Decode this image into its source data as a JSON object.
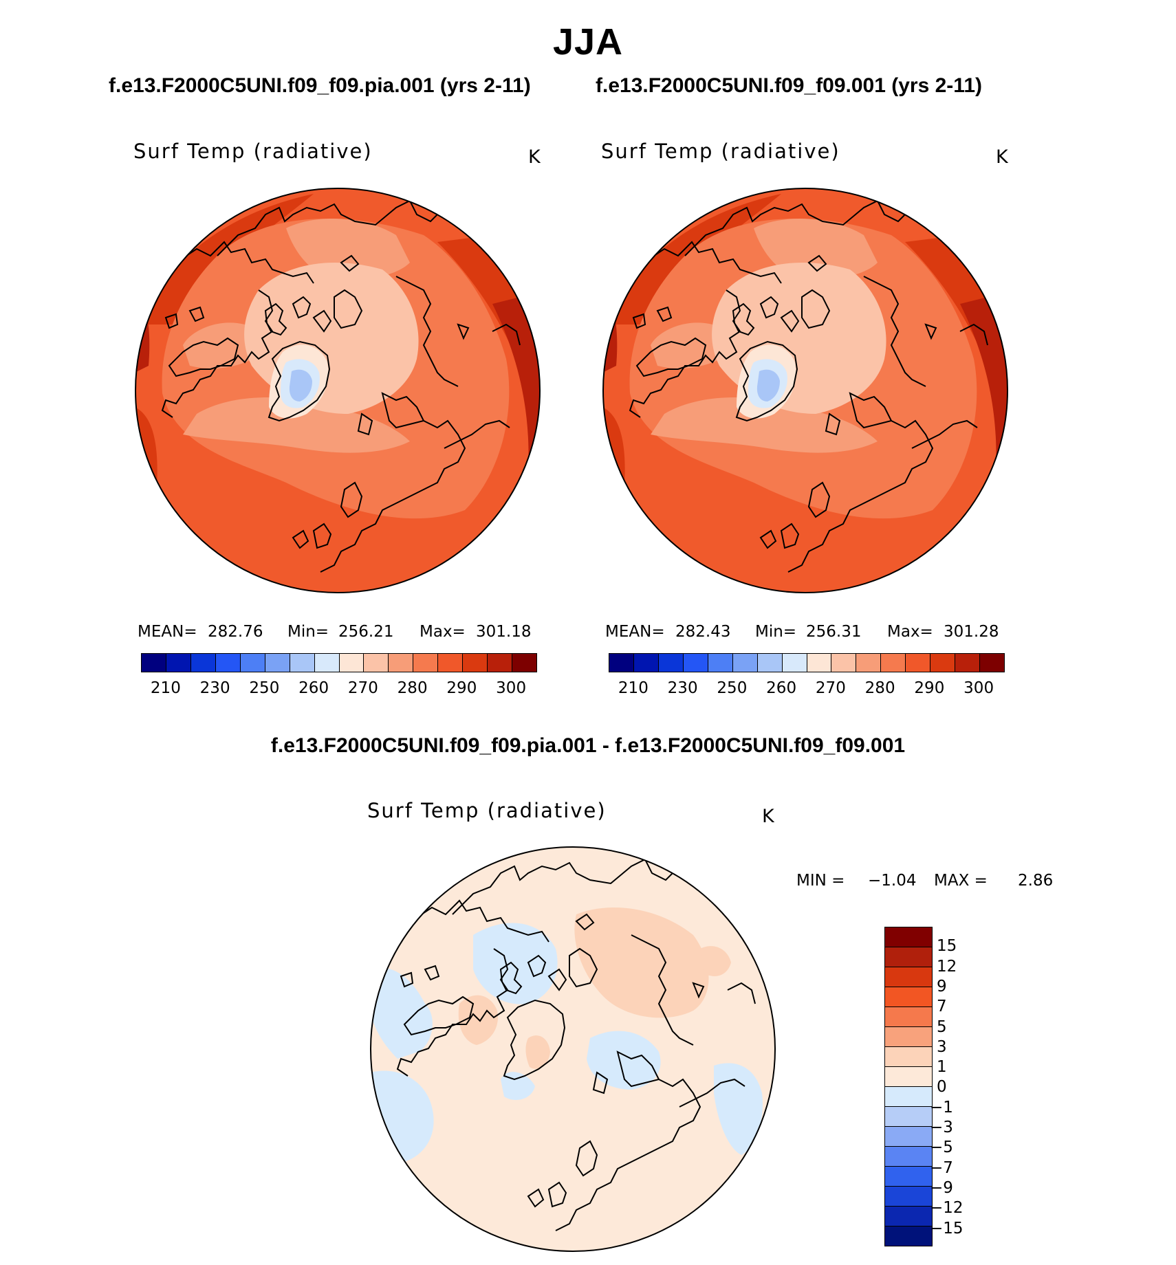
{
  "title": "JJA",
  "panels": [
    {
      "case_title": "f.e13.F2000C5UNI.f09_f09.pia.001 (yrs 2-11)",
      "variable": "Surf Temp (radiative)",
      "units": "K",
      "stats": {
        "mean_label": "MEAN=",
        "mean": "282.76",
        "min_label": "Min=",
        "min": "256.21",
        "max_label": "Max=",
        "max": "301.18"
      }
    },
    {
      "case_title": "f.e13.F2000C5UNI.f09_f09.001 (yrs 2-11)",
      "variable": "Surf Temp (radiative)",
      "units": "K",
      "stats": {
        "mean_label": "MEAN=",
        "mean": "282.43",
        "min_label": "Min=",
        "min": "256.31",
        "max_label": "Max=",
        "max": "301.28"
      }
    }
  ],
  "abs_colorbar": {
    "colors": [
      "#00007f",
      "#0015b0",
      "#0a36d8",
      "#2456f5",
      "#4d7ff5",
      "#7aa2f5",
      "#a9c6f7",
      "#d8e9fb",
      "#fde6d6",
      "#fbc3a8",
      "#f79d78",
      "#f57a4e",
      "#f0582a",
      "#da3a10",
      "#b8200a",
      "#7d0000"
    ],
    "ticks": [
      "210",
      "230",
      "250",
      "260",
      "270",
      "280",
      "290",
      "300"
    ]
  },
  "difference": {
    "title": "f.e13.F2000C5UNI.f09_f09.pia.001 - f.e13.F2000C5UNI.f09_f09.001",
    "variable": "Surf Temp (radiative)",
    "units": "K",
    "min_label": "MIN =",
    "min": "−1.04",
    "max_label": "MAX =",
    "max": "2.86"
  },
  "diff_colorbar": {
    "colors": [
      "#800000",
      "#b0200c",
      "#d8380f",
      "#f25623",
      "#f5794c",
      "#f8a27c",
      "#fcd3b9",
      "#fde9d9",
      "#d6eafc",
      "#b6cdf7",
      "#8aaaf5",
      "#5a84f3",
      "#3062ee",
      "#1a45d8",
      "#0b27b0",
      "#00127a"
    ],
    "ticks": [
      "15",
      "12",
      "9",
      "7",
      "5",
      "3",
      "1",
      "0",
      "−1",
      "−3",
      "−5",
      "−7",
      "−9",
      "−12",
      "−15"
    ]
  },
  "chart_data": [
    {
      "type": "heatmap",
      "title": "f.e13.F2000C5UNI.f09_f09.pia.001 (yrs 2-11)",
      "variable": "Surf Temp (radiative)",
      "units": "K",
      "projection": "north polar stereographic",
      "season": "JJA",
      "mean": 282.76,
      "min": 256.21,
      "max": 301.18,
      "levels": [
        210,
        220,
        230,
        240,
        250,
        255,
        260,
        265,
        270,
        275,
        280,
        285,
        290,
        295,
        300
      ]
    },
    {
      "type": "heatmap",
      "title": "f.e13.F2000C5UNI.f09_f09.001 (yrs 2-11)",
      "variable": "Surf Temp (radiative)",
      "units": "K",
      "projection": "north polar stereographic",
      "season": "JJA",
      "mean": 282.43,
      "min": 256.31,
      "max": 301.28,
      "levels": [
        210,
        220,
        230,
        240,
        250,
        255,
        260,
        265,
        270,
        275,
        280,
        285,
        290,
        295,
        300
      ]
    },
    {
      "type": "heatmap",
      "title": "f.e13.F2000C5UNI.f09_f09.pia.001 - f.e13.F2000C5UNI.f09_f09.001",
      "variable": "Surf Temp (radiative)",
      "units": "K",
      "projection": "north polar stereographic",
      "season": "JJA",
      "min": -1.04,
      "max": 2.86,
      "levels": [
        -15,
        -12,
        -9,
        -7,
        -5,
        -3,
        -1,
        0,
        1,
        3,
        5,
        7,
        9,
        12,
        15
      ]
    }
  ]
}
